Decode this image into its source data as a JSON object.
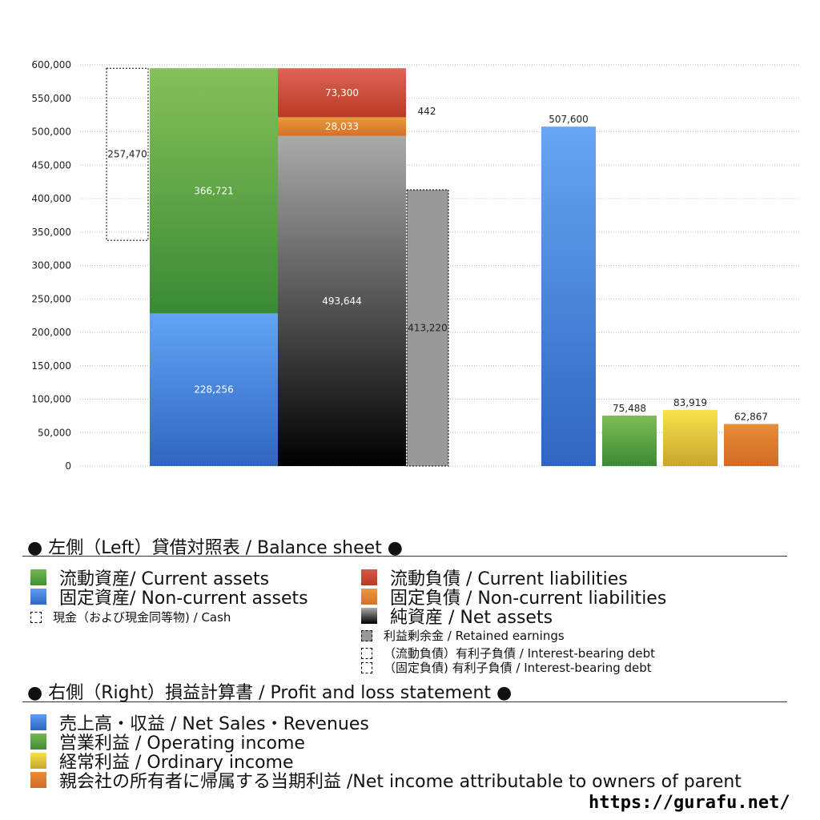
{
  "chart_data": {
    "type": "bar",
    "ylim": [
      0,
      600000
    ],
    "yticks": [
      "0",
      "50,000",
      "100,000",
      "150,000",
      "200,000",
      "250,000",
      "300,000",
      "350,000",
      "400,000",
      "450,000",
      "500,000",
      "550,000",
      "600,000"
    ],
    "grid": true,
    "balance_sheet": {
      "cash": {
        "value": 257470,
        "label": "257,470"
      },
      "non_current_assets": {
        "value": 228256,
        "label": "228,256",
        "color": "#3f7fd6"
      },
      "current_assets": {
        "value": 366721,
        "label": "366,721",
        "color": "#5aa845"
      },
      "net_assets": {
        "value": 493644,
        "label": "493,644",
        "color": "#555555"
      },
      "non_current_liabilities": {
        "value": 28033,
        "label": "28,033",
        "color": "#e0832f"
      },
      "current_liabilities": {
        "value": 73300,
        "label": "73,300",
        "color": "#cc4431"
      },
      "retained_earnings": {
        "value": 413220,
        "label": "413,220",
        "color": "#999999"
      },
      "interest_bearing_debt": {
        "value": 442,
        "label": "442"
      }
    },
    "profit_and_loss": [
      {
        "name": "net_sales",
        "value": 507600,
        "label": "507,600",
        "color": "#4a8ee6"
      },
      {
        "name": "operating_income",
        "value": 75488,
        "label": "75,488",
        "color": "#4f9e3d"
      },
      {
        "name": "ordinary_income",
        "value": 83919,
        "label": "83,919",
        "color": "#e8c93a"
      },
      {
        "name": "net_income",
        "value": 62867,
        "label": "62,867",
        "color": "#de7d2c"
      }
    ]
  },
  "legend": {
    "left_header": "● 左側（Left）貸借対照表 / Balance sheet ●",
    "current_assets": "流動資産/ Current assets",
    "non_current_assets": "固定資産/ Non-current assets",
    "cash": "現金（および現金同等物) / Cash",
    "current_liabilities": "流動負債 /  Current liabilities",
    "non_current_liabilities": "固定負債 / Non-current liabilities",
    "net_assets": "純資産 / Net assets",
    "retained_earnings": "利益剰余金 / Retained earnings",
    "current_debt": "（流動負債）有利子負債 / Interest-bearing debt",
    "non_current_debt": "（固定負債) 有利子負債 / Interest-bearing debt",
    "right_header": "● 右側（Right）損益計算書 / Profit and loss statement ●",
    "net_sales": "売上高・収益 / Net Sales・Revenues",
    "operating_income": "営業利益 / Operating income",
    "ordinary_income": "経常利益 / Ordinary income",
    "net_income": "親会社の所有者に帰属する当期利益 /Net income attributable to owners of parent"
  },
  "url": "https://gurafu.net/"
}
